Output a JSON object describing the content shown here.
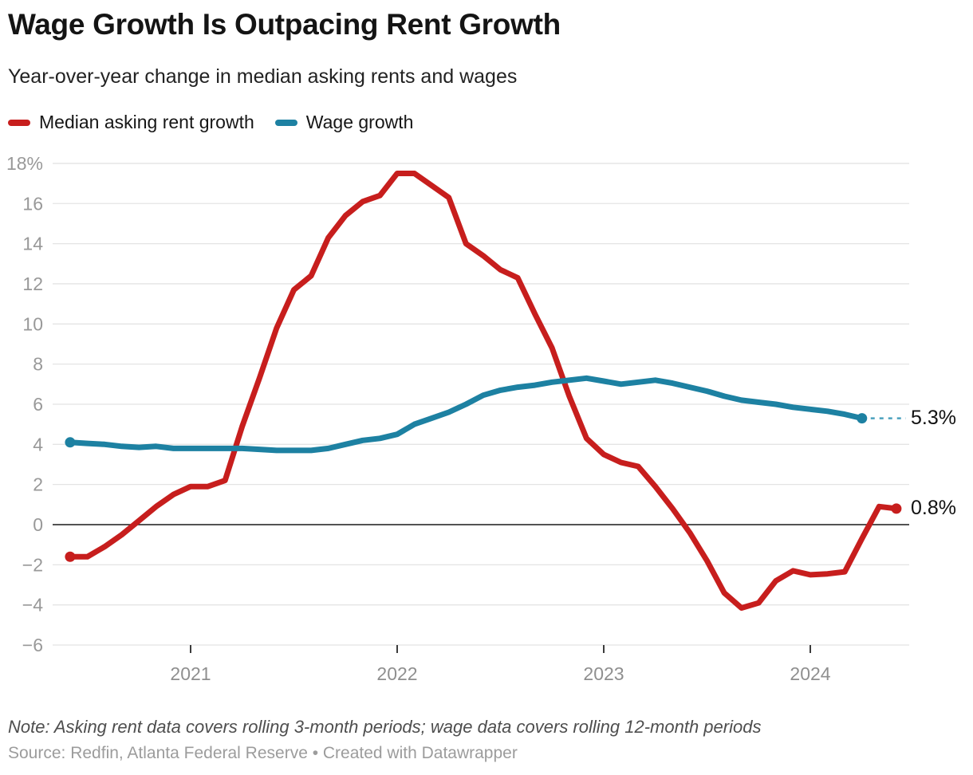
{
  "header": {
    "title": "Wage Growth Is Outpacing Rent Growth",
    "subtitle": "Year-over-year change in median asking rents and wages"
  },
  "footer": {
    "note": "Note: Asking rent data covers rolling 3-month periods; wage data covers rolling 12-month periods",
    "source": "Source: Redfin, Atlanta Federal Reserve • Created with Datawrapper"
  },
  "colors": {
    "rent": "#c71e1d",
    "wage": "#1d81a2",
    "grid": "#e4e4e4",
    "zero_line": "#1a1a1a",
    "axis_text": "#999999",
    "wage_dash_connector": "#4aa0bd"
  },
  "chart_data": {
    "type": "line",
    "title": "Wage Growth Is Outpacing Rent Growth",
    "subtitle": "Year-over-year change in median asking rents and wages",
    "ylim": [
      -6,
      18
    ],
    "grid": true,
    "legend_position": "top-left",
    "y_ticks": [
      18,
      16,
      14,
      12,
      10,
      8,
      6,
      4,
      2,
      0,
      -2,
      -4,
      -6
    ],
    "y_tick_labels": [
      "18%",
      "16",
      "14",
      "12",
      "10",
      "8",
      "6",
      "4",
      "2",
      "0",
      "−2",
      "−4",
      "−6"
    ],
    "x_ticks": [
      {
        "label": "2021",
        "month_index": 7
      },
      {
        "label": "2022",
        "month_index": 19
      },
      {
        "label": "2023",
        "month_index": 31
      },
      {
        "label": "2024",
        "month_index": 43
      }
    ],
    "series": [
      {
        "name": "Median asking rent growth",
        "color": "#c71e1d",
        "frequency": "monthly",
        "start_month": "2020-06",
        "end_month": "2024-06",
        "end_label": "0.8%",
        "values": [
          -1.6,
          -1.6,
          -1.1,
          -0.5,
          0.2,
          0.9,
          1.5,
          1.9,
          1.9,
          2.2,
          4.9,
          7.3,
          9.8,
          11.7,
          12.4,
          14.3,
          15.4,
          16.1,
          16.4,
          17.5,
          17.5,
          16.9,
          16.3,
          14.0,
          13.4,
          12.7,
          12.3,
          10.5,
          8.8,
          6.4,
          4.3,
          3.5,
          3.1,
          2.9,
          1.9,
          0.8,
          -0.4,
          -1.8,
          -3.4,
          -4.15,
          -3.9,
          -2.8,
          -2.3,
          -2.5,
          -2.45,
          -2.35,
          -0.7,
          0.9,
          0.8
        ]
      },
      {
        "name": "Wage growth",
        "color": "#1d81a2",
        "frequency": "monthly",
        "start_month": "2020-06",
        "end_month": "2024-04",
        "end_label": "5.3%",
        "values": [
          4.1,
          4.05,
          4.0,
          3.9,
          3.85,
          3.9,
          3.8,
          3.8,
          3.8,
          3.8,
          3.8,
          3.75,
          3.7,
          3.7,
          3.7,
          3.8,
          4.0,
          4.2,
          4.3,
          4.5,
          5.0,
          5.3,
          5.6,
          6.0,
          6.45,
          6.7,
          6.85,
          6.95,
          7.1,
          7.2,
          7.3,
          7.15,
          7.0,
          7.1,
          7.2,
          7.05,
          6.85,
          6.65,
          6.4,
          6.2,
          6.1,
          6.0,
          5.85,
          5.75,
          5.65,
          5.5,
          5.3
        ]
      }
    ]
  }
}
